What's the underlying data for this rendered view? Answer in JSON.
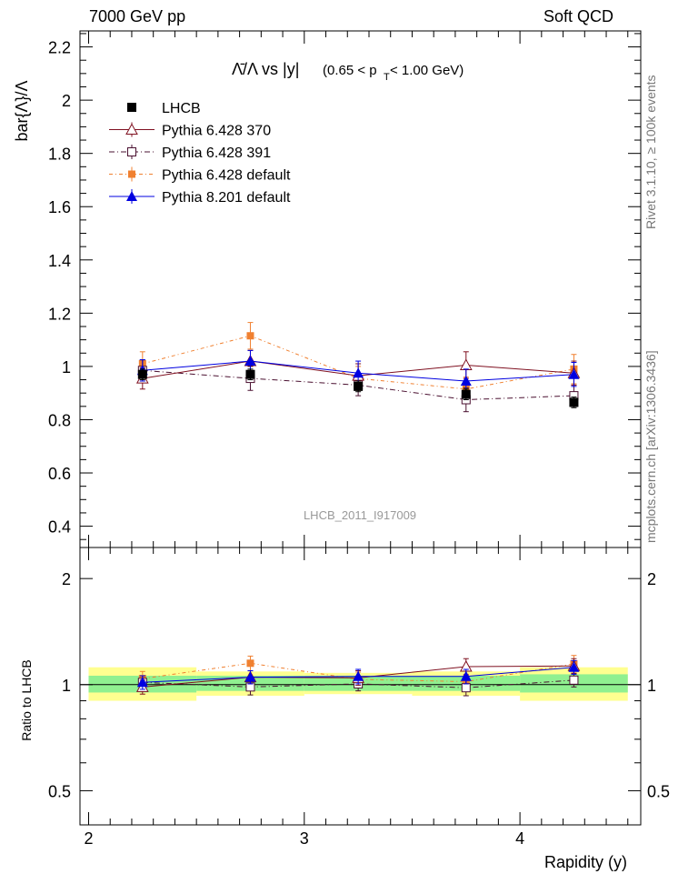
{
  "header": {
    "energy_label": "7000 GeV pp",
    "process_label": "Soft QCD"
  },
  "side": {
    "rivet_label": "Rivet 3.1.10, ≥ 100k events",
    "mcplots_label": "mcplots.cern.ch [arXiv:1306.3436]"
  },
  "colors": {
    "data": "#000000",
    "pythia6_370": "#7f1020",
    "pythia6_391": "#4a1030",
    "pythia6_default": "#f08030",
    "pythia8_default": "#0000e0",
    "band_inner": "#90f090",
    "band_outer": "#ffff90"
  },
  "chart_data": [
    {
      "type": "line",
      "title_main": "Λ̄/Λ vs |y|",
      "title_cut": "(0.65 < p",
      "title_sub": "T",
      "title_cut_end": " < 1.00 GeV)",
      "ylabel": "bar{Λ}/Λ",
      "xlim": [
        1.96,
        4.56
      ],
      "ylim": [
        0.32,
        2.26
      ],
      "yticks": [
        0.4,
        0.6,
        0.8,
        1.0,
        1.2,
        1.4,
        1.6,
        1.8,
        2.0,
        2.2
      ],
      "ytick_labels": [
        "0.4",
        "0.6",
        "0.8",
        "1",
        "1.2",
        "1.4",
        "1.6",
        "1.8",
        "2",
        "2.2"
      ],
      "watermark": "LHCB_2011_I917009",
      "legend": [
        "LHCB",
        "Pythia 6.428 370",
        "Pythia 6.428 391",
        "Pythia 6.428 default",
        "Pythia 8.201 default"
      ],
      "x": [
        2.25,
        2.75,
        3.25,
        3.75,
        4.25
      ],
      "series": [
        {
          "name": "LHCB",
          "values": [
            0.97,
            0.97,
            0.925,
            0.895,
            0.865
          ],
          "errors": [
            0.02,
            0.02,
            0.02,
            0.02,
            0.02
          ]
        },
        {
          "name": "Pythia 6.428 370",
          "values": [
            0.955,
            1.02,
            0.965,
            1.005,
            0.975
          ],
          "errors": [
            0.04,
            0.04,
            0.045,
            0.05,
            0.045
          ]
        },
        {
          "name": "Pythia 6.428 391",
          "values": [
            0.985,
            0.955,
            0.93,
            0.875,
            0.89
          ],
          "errors": [
            0.04,
            0.045,
            0.04,
            0.045,
            0.04
          ]
        },
        {
          "name": "Pythia 6.428 default",
          "values": [
            1.01,
            1.115,
            0.955,
            0.915,
            0.99
          ],
          "errors": [
            0.045,
            0.05,
            0.045,
            0.045,
            0.055
          ]
        },
        {
          "name": "Pythia 8.201 default",
          "values": [
            0.985,
            1.02,
            0.975,
            0.945,
            0.97
          ],
          "errors": [
            0.04,
            0.04,
            0.045,
            0.045,
            0.045
          ]
        }
      ]
    },
    {
      "type": "line",
      "ylabel": "Ratio to LHCB",
      "xlabel": "Rapidity (y)",
      "xlim": [
        1.96,
        4.56
      ],
      "ylim": [
        0.4,
        2.45
      ],
      "log_y": true,
      "yticks": [
        0.5,
        1,
        2
      ],
      "ytick_labels": [
        "0.5",
        "1",
        "2"
      ],
      "xticks": [
        2,
        3,
        4
      ],
      "xtick_labels": [
        "2",
        "3",
        "4"
      ],
      "bands": [
        {
          "x0": 2.0,
          "x1": 2.5,
          "inner": [
            0.95,
            1.06
          ],
          "outer": [
            0.9,
            1.12
          ]
        },
        {
          "x0": 2.5,
          "x1": 3.0,
          "inner": [
            0.96,
            1.06
          ],
          "outer": [
            0.93,
            1.09
          ]
        },
        {
          "x0": 3.0,
          "x1": 3.5,
          "inner": [
            0.96,
            1.06
          ],
          "outer": [
            0.94,
            1.08
          ]
        },
        {
          "x0": 3.5,
          "x1": 4.0,
          "inner": [
            0.96,
            1.06
          ],
          "outer": [
            0.93,
            1.09
          ]
        },
        {
          "x0": 4.0,
          "x1": 4.5,
          "inner": [
            0.95,
            1.07
          ],
          "outer": [
            0.9,
            1.12
          ]
        }
      ],
      "x": [
        2.25,
        2.75,
        3.25,
        3.75,
        4.25
      ],
      "series": [
        {
          "name": "Pythia 6.428 370",
          "values": [
            0.985,
            1.05,
            1.045,
            1.125,
            1.13
          ],
          "errors": [
            0.045,
            0.045,
            0.05,
            0.06,
            0.055
          ]
        },
        {
          "name": "Pythia 6.428 391",
          "values": [
            1.015,
            0.985,
            1.005,
            0.98,
            1.03
          ],
          "errors": [
            0.045,
            0.05,
            0.045,
            0.05,
            0.045
          ]
        },
        {
          "name": "Pythia 6.428 default",
          "values": [
            1.04,
            1.15,
            1.035,
            1.02,
            1.145
          ],
          "errors": [
            0.05,
            0.055,
            0.05,
            0.05,
            0.065
          ]
        },
        {
          "name": "Pythia 8.201 default",
          "values": [
            1.015,
            1.05,
            1.055,
            1.055,
            1.12
          ],
          "errors": [
            0.045,
            0.045,
            0.05,
            0.05,
            0.05
          ]
        }
      ]
    }
  ]
}
